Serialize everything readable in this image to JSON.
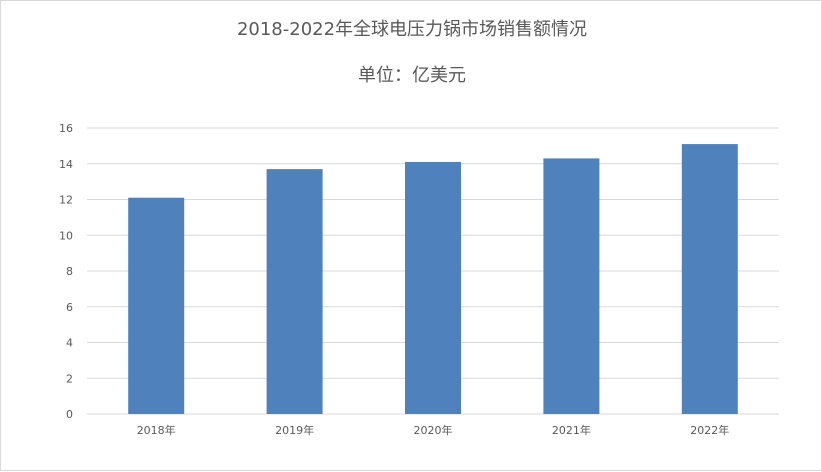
{
  "chart_data": {
    "type": "bar",
    "title": "2018-2022年全球电压力锅市场销售额情况",
    "subtitle": "单位：亿美元",
    "categories": [
      "2018年",
      "2019年",
      "2020年",
      "2021年",
      "2022年"
    ],
    "values": [
      12.1,
      13.7,
      14.1,
      14.3,
      15.1
    ],
    "ylim": [
      0,
      16
    ],
    "yticks": [
      0,
      2,
      4,
      6,
      8,
      10,
      12,
      14,
      16
    ],
    "grid": true,
    "bar_color": "#4f81bd",
    "grid_color": "#d9d9d9"
  }
}
